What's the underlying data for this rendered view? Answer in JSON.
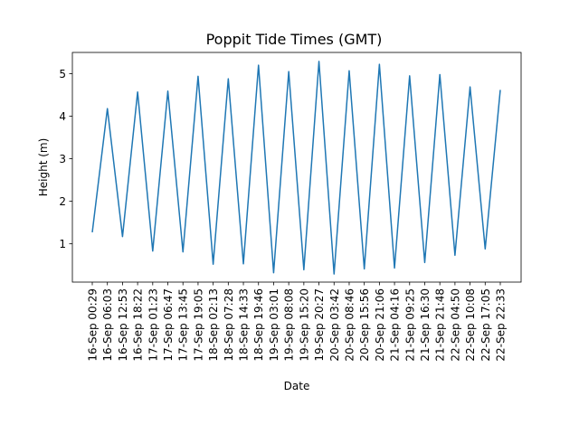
{
  "chart_data": {
    "type": "line",
    "title": "Poppit Tide Times (GMT)",
    "xlabel": "Date",
    "ylabel": "Height (m)",
    "ylim": [
      0.1,
      5.5
    ],
    "yticks": [
      1,
      2,
      3,
      4,
      5
    ],
    "grid": false,
    "series": [
      {
        "color": "#1f77b4",
        "x": [
          "16-Sep 00:29",
          "16-Sep 06:03",
          "16-Sep 12:53",
          "16-Sep 18:22",
          "17-Sep 01:23",
          "17-Sep 06:47",
          "17-Sep 13:45",
          "17-Sep 19:05",
          "18-Sep 02:13",
          "18-Sep 07:28",
          "18-Sep 14:33",
          "18-Sep 19:46",
          "19-Sep 03:01",
          "19-Sep 08:08",
          "19-Sep 15:20",
          "19-Sep 20:27",
          "20-Sep 03:42",
          "20-Sep 08:46",
          "20-Sep 15:56",
          "20-Sep 21:06",
          "21-Sep 04:16",
          "21-Sep 09:25",
          "21-Sep 16:30",
          "21-Sep 21:48",
          "22-Sep 04:50",
          "22-Sep 10:08",
          "22-Sep 17:05",
          "22-Sep 22:33"
        ],
        "values": [
          1.27,
          4.18,
          1.17,
          4.57,
          0.83,
          4.59,
          0.81,
          4.94,
          0.52,
          4.88,
          0.53,
          5.2,
          0.32,
          5.05,
          0.39,
          5.29,
          0.29,
          5.07,
          0.41,
          5.22,
          0.43,
          4.95,
          0.56,
          4.98,
          0.73,
          4.69,
          0.88,
          4.62
        ]
      }
    ]
  }
}
